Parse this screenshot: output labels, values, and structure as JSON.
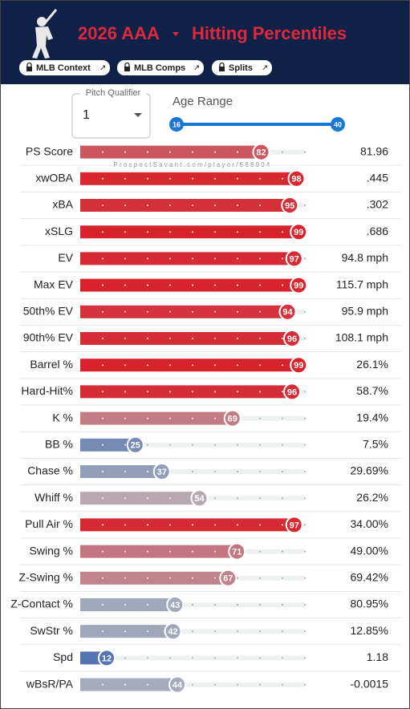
{
  "header": {
    "level": "2026 AAA",
    "title": "Hitting Percentiles",
    "buttons": [
      "MLB Context",
      "MLB Comps",
      "Splits"
    ]
  },
  "controls": {
    "pitch_qualifier_label": "Pitch Qualifier",
    "pitch_qualifier": "1",
    "age_range_label": "Age Range",
    "age_min": "16",
    "age_max": "40"
  },
  "watermark": "ProspectSavant.com/player/668904",
  "rows": [
    {
      "label": "PS Score",
      "percentile": 82,
      "value": "81.96"
    },
    {
      "label": "xwOBA",
      "percentile": 98,
      "value": ".445"
    },
    {
      "label": "xBA",
      "percentile": 95,
      "value": ".302"
    },
    {
      "label": "xSLG",
      "percentile": 99,
      "value": ".686"
    },
    {
      "label": "EV",
      "percentile": 97,
      "value": "94.8 mph"
    },
    {
      "label": "Max EV",
      "percentile": 99,
      "value": "115.7 mph"
    },
    {
      "label": "50th% EV",
      "percentile": 94,
      "value": "95.9 mph"
    },
    {
      "label": "90th% EV",
      "percentile": 96,
      "value": "108.1 mph"
    },
    {
      "label": "Barrel %",
      "percentile": 99,
      "value": "26.1%"
    },
    {
      "label": "Hard-Hit%",
      "percentile": 96,
      "value": "58.7%"
    },
    {
      "label": "K %",
      "percentile": 69,
      "value": "19.4%"
    },
    {
      "label": "BB %",
      "percentile": 25,
      "value": "7.5%"
    },
    {
      "label": "Chase %",
      "percentile": 37,
      "value": "29.69%"
    },
    {
      "label": "Whiff %",
      "percentile": 54,
      "value": "26.2%"
    },
    {
      "label": "Pull Air %",
      "percentile": 97,
      "value": "34.00%"
    },
    {
      "label": "Swing %",
      "percentile": 71,
      "value": "49.00%"
    },
    {
      "label": "Z-Swing %",
      "percentile": 67,
      "value": "69.42%"
    },
    {
      "label": "Z-Contact %",
      "percentile": 43,
      "value": "80.95%"
    },
    {
      "label": "SwStr %",
      "percentile": 42,
      "value": "12.85%"
    },
    {
      "label": "Spd",
      "percentile": 12,
      "value": "1.18"
    },
    {
      "label": "wBsR/PA",
      "percentile": 44,
      "value": "-0.0015"
    }
  ]
}
